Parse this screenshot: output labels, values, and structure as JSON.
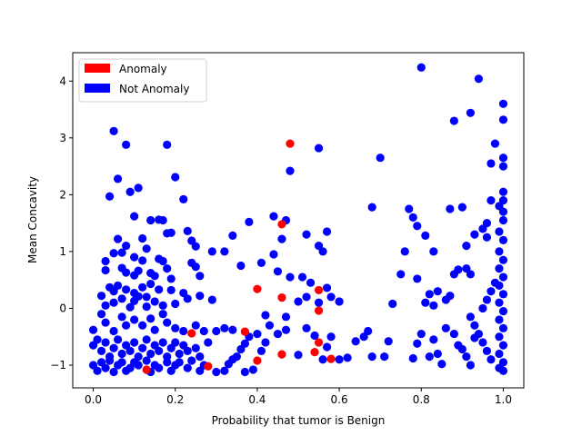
{
  "chart_data": {
    "type": "scatter",
    "title": "",
    "xlabel": "Probability that tumor is Benign",
    "ylabel": "Mean Concavity",
    "xlim": [
      -0.05,
      1.05
    ],
    "ylim": [
      -1.4,
      4.5
    ],
    "xticks": [
      0.0,
      0.2,
      0.4,
      0.6,
      0.8,
      1.0
    ],
    "xtick_labels": [
      "0.0",
      "0.2",
      "0.4",
      "0.6",
      "0.8",
      "1.0"
    ],
    "yticks": [
      -1,
      0,
      1,
      2,
      3,
      4
    ],
    "ytick_labels": [
      "−1",
      "0",
      "1",
      "2",
      "3",
      "4"
    ],
    "grid": false,
    "legend": {
      "placement": "top-left",
      "entries": [
        {
          "label": "Anomaly",
          "color": "#ff0000"
        },
        {
          "label": "Not Anomaly",
          "color": "#0000ff"
        }
      ]
    },
    "series": [
      {
        "name": "Not Anomaly",
        "color": "#0000ff",
        "points": [
          [
            0.05,
            3.12
          ],
          [
            0.08,
            2.88
          ],
          [
            0.18,
            2.88
          ],
          [
            0.2,
            2.31
          ],
          [
            0.06,
            2.28
          ],
          [
            0.11,
            2.12
          ],
          [
            0.09,
            2.05
          ],
          [
            0.04,
            1.97
          ],
          [
            0.22,
            1.92
          ],
          [
            0.1,
            1.62
          ],
          [
            0.14,
            1.55
          ],
          [
            0.16,
            1.56
          ],
          [
            0.17,
            1.55
          ],
          [
            0.23,
            1.36
          ],
          [
            0.18,
            1.32
          ],
          [
            0.19,
            1.33
          ],
          [
            0.24,
            1.19
          ],
          [
            0.12,
            1.23
          ],
          [
            0.06,
            1.22
          ],
          [
            0.08,
            1.1
          ],
          [
            0.13,
            1.05
          ],
          [
            0.25,
            1.09
          ],
          [
            0.29,
            1.0
          ],
          [
            0.32,
            1.0
          ],
          [
            0.03,
            0.83
          ],
          [
            0.05,
            0.97
          ],
          [
            0.07,
            0.98
          ],
          [
            0.1,
            0.9
          ],
          [
            0.12,
            0.84
          ],
          [
            0.16,
            0.87
          ],
          [
            0.17,
            0.83
          ],
          [
            0.18,
            0.7
          ],
          [
            0.24,
            0.8
          ],
          [
            0.25,
            0.73
          ],
          [
            0.26,
            0.57
          ],
          [
            0.03,
            0.67
          ],
          [
            0.07,
            0.71
          ],
          [
            0.08,
            0.63
          ],
          [
            0.1,
            0.58
          ],
          [
            0.11,
            0.66
          ],
          [
            0.14,
            0.62
          ],
          [
            0.15,
            0.57
          ],
          [
            0.19,
            0.52
          ],
          [
            0.04,
            0.37
          ],
          [
            0.06,
            0.4
          ],
          [
            0.02,
            0.22
          ],
          [
            0.05,
            0.3
          ],
          [
            0.08,
            0.33
          ],
          [
            0.1,
            0.27
          ],
          [
            0.12,
            0.37
          ],
          [
            0.13,
            0.2
          ],
          [
            0.14,
            0.43
          ],
          [
            0.16,
            0.33
          ],
          [
            0.19,
            0.32
          ],
          [
            0.22,
            0.27
          ],
          [
            0.03,
            0.05
          ],
          [
            0.05,
            0.1
          ],
          [
            0.07,
            0.17
          ],
          [
            0.09,
            0.02
          ],
          [
            0.1,
            0.13
          ],
          [
            0.11,
            0.21
          ],
          [
            0.13,
            0.03
          ],
          [
            0.15,
            0.12
          ],
          [
            0.17,
            0.05
          ],
          [
            0.2,
            0.08
          ],
          [
            0.23,
            0.17
          ],
          [
            0.26,
            0.22
          ],
          [
            0.29,
            0.15
          ],
          [
            0.0,
            -0.38
          ],
          [
            0.02,
            -0.1
          ],
          [
            0.03,
            -0.25
          ],
          [
            0.05,
            -0.4
          ],
          [
            0.07,
            -0.15
          ],
          [
            0.08,
            -0.3
          ],
          [
            0.1,
            -0.2
          ],
          [
            0.12,
            -0.3
          ],
          [
            0.14,
            -0.18
          ],
          [
            0.15,
            -0.38
          ],
          [
            0.17,
            -0.1
          ],
          [
            0.18,
            -0.25
          ],
          [
            0.2,
            -0.35
          ],
          [
            0.22,
            -0.4
          ],
          [
            0.25,
            -0.3
          ],
          [
            0.27,
            -0.4
          ],
          [
            0.3,
            -0.4
          ],
          [
            0.32,
            -0.35
          ],
          [
            0.34,
            -0.38
          ],
          [
            0.0,
            -0.65
          ],
          [
            0.01,
            -0.55
          ],
          [
            0.02,
            -0.75
          ],
          [
            0.03,
            -0.6
          ],
          [
            0.04,
            -0.85
          ],
          [
            0.05,
            -0.7
          ],
          [
            0.06,
            -0.55
          ],
          [
            0.07,
            -0.8
          ],
          [
            0.08,
            -0.65
          ],
          [
            0.09,
            -0.75
          ],
          [
            0.1,
            -0.6
          ],
          [
            0.11,
            -0.85
          ],
          [
            0.12,
            -0.7
          ],
          [
            0.13,
            -0.55
          ],
          [
            0.14,
            -0.8
          ],
          [
            0.15,
            -0.65
          ],
          [
            0.16,
            -0.75
          ],
          [
            0.17,
            -0.6
          ],
          [
            0.18,
            -0.85
          ],
          [
            0.19,
            -0.7
          ],
          [
            0.2,
            -0.6
          ],
          [
            0.21,
            -0.8
          ],
          [
            0.22,
            -0.65
          ],
          [
            0.23,
            -0.75
          ],
          [
            0.25,
            -0.7
          ],
          [
            0.26,
            -0.85
          ],
          [
            0.28,
            -0.6
          ],
          [
            0.0,
            -1.0
          ],
          [
            0.01,
            -1.1
          ],
          [
            0.02,
            -0.95
          ],
          [
            0.03,
            -1.05
          ],
          [
            0.04,
            -0.92
          ],
          [
            0.05,
            -1.12
          ],
          [
            0.06,
            -1.0
          ],
          [
            0.07,
            -0.95
          ],
          [
            0.08,
            -1.1
          ],
          [
            0.09,
            -1.05
          ],
          [
            0.1,
            -0.95
          ],
          [
            0.11,
            -1.0
          ],
          [
            0.13,
            -0.92
          ],
          [
            0.14,
            -1.12
          ],
          [
            0.15,
            -1.0
          ],
          [
            0.16,
            -1.05
          ],
          [
            0.18,
            -0.95
          ],
          [
            0.19,
            -1.1
          ],
          [
            0.2,
            -1.0
          ],
          [
            0.21,
            -0.95
          ],
          [
            0.23,
            -1.05
          ],
          [
            0.24,
            -0.92
          ],
          [
            0.26,
            -1.1
          ],
          [
            0.27,
            -1.0
          ],
          [
            0.3,
            -1.12
          ],
          [
            0.32,
            -1.1
          ],
          [
            0.33,
            -0.98
          ],
          [
            0.34,
            -0.9
          ],
          [
            0.35,
            -0.85
          ],
          [
            0.36,
            -0.72
          ],
          [
            0.37,
            -0.62
          ],
          [
            0.38,
            -0.5
          ],
          [
            0.37,
            -1.12
          ],
          [
            0.39,
            -1.08
          ],
          [
            0.41,
            -0.75
          ],
          [
            0.42,
            -0.6
          ],
          [
            0.4,
            -0.45
          ],
          [
            0.43,
            -0.3
          ],
          [
            0.45,
            -0.45
          ],
          [
            0.47,
            -0.38
          ],
          [
            0.5,
            -0.82
          ],
          [
            0.52,
            -0.35
          ],
          [
            0.54,
            -0.48
          ],
          [
            0.57,
            -0.68
          ],
          [
            0.56,
            -0.9
          ],
          [
            0.58,
            -0.5
          ],
          [
            0.6,
            -0.9
          ],
          [
            0.62,
            -0.87
          ],
          [
            0.64,
            -0.58
          ],
          [
            0.66,
            -0.5
          ],
          [
            0.67,
            -0.4
          ],
          [
            0.68,
            -0.85
          ],
          [
            0.71,
            -0.85
          ],
          [
            0.72,
            -0.58
          ],
          [
            0.42,
            -0.12
          ],
          [
            0.47,
            -0.15
          ],
          [
            0.5,
            0.12
          ],
          [
            0.52,
            0.2
          ],
          [
            0.55,
            0.1
          ],
          [
            0.58,
            0.2
          ],
          [
            0.6,
            0.12
          ],
          [
            0.57,
            0.36
          ],
          [
            0.45,
            0.65
          ],
          [
            0.48,
            0.55
          ],
          [
            0.51,
            0.55
          ],
          [
            0.53,
            0.45
          ],
          [
            0.36,
            0.75
          ],
          [
            0.41,
            0.8
          ],
          [
            0.44,
            0.95
          ],
          [
            0.46,
            1.22
          ],
          [
            0.34,
            1.28
          ],
          [
            0.38,
            1.52
          ],
          [
            0.44,
            1.62
          ],
          [
            0.47,
            1.55
          ],
          [
            0.52,
            1.3
          ],
          [
            0.55,
            1.1
          ],
          [
            0.56,
            1.0
          ],
          [
            0.57,
            1.35
          ],
          [
            0.48,
            2.42
          ],
          [
            0.55,
            2.82
          ],
          [
            0.68,
            1.78
          ],
          [
            0.7,
            2.65
          ],
          [
            0.73,
            0.08
          ],
          [
            0.75,
            0.6
          ],
          [
            0.76,
            1.0
          ],
          [
            0.77,
            1.75
          ],
          [
            0.78,
            1.6
          ],
          [
            0.79,
            0.52
          ],
          [
            0.79,
            1.45
          ],
          [
            0.8,
            4.24
          ],
          [
            0.81,
            0.1
          ],
          [
            0.82,
            0.25
          ],
          [
            0.81,
            1.28
          ],
          [
            0.83,
            0.05
          ],
          [
            0.83,
            1.0
          ],
          [
            0.84,
            0.3
          ],
          [
            0.86,
            0.15
          ],
          [
            0.87,
            0.22
          ],
          [
            0.87,
            1.75
          ],
          [
            0.88,
            0.6
          ],
          [
            0.89,
            0.68
          ],
          [
            0.88,
            3.3
          ],
          [
            0.9,
            1.78
          ],
          [
            0.91,
            0.7
          ],
          [
            0.91,
            1.1
          ],
          [
            0.92,
            0.6
          ],
          [
            0.92,
            3.44
          ],
          [
            0.93,
            1.3
          ],
          [
            0.94,
            4.04
          ],
          [
            0.95,
            1.4
          ],
          [
            0.96,
            1.5
          ],
          [
            0.97,
            2.55
          ],
          [
            0.98,
            2.9
          ],
          [
            0.99,
            1.8
          ],
          [
            1.0,
            3.6
          ],
          [
            1.0,
            3.32
          ],
          [
            1.0,
            2.65
          ],
          [
            1.0,
            2.5
          ],
          [
            1.0,
            2.05
          ],
          [
            1.0,
            1.9
          ],
          [
            1.0,
            1.7
          ],
          [
            1.0,
            1.55
          ],
          [
            0.99,
            1.35
          ],
          [
            1.0,
            1.2
          ],
          [
            0.99,
            1.0
          ],
          [
            1.0,
            0.85
          ],
          [
            0.99,
            0.7
          ],
          [
            1.0,
            0.55
          ],
          [
            0.99,
            0.4
          ],
          [
            1.0,
            0.25
          ],
          [
            0.99,
            0.1
          ],
          [
            1.0,
            -0.05
          ],
          [
            0.99,
            -0.2
          ],
          [
            1.0,
            -0.35
          ],
          [
            0.99,
            -0.5
          ],
          [
            1.0,
            -0.65
          ],
          [
            0.99,
            -0.8
          ],
          [
            1.0,
            -0.95
          ],
          [
            0.99,
            -1.05
          ],
          [
            1.0,
            -1.1
          ],
          [
            0.97,
            -0.9
          ],
          [
            0.96,
            -0.75
          ],
          [
            0.95,
            -0.6
          ],
          [
            0.94,
            -0.45
          ],
          [
            0.93,
            -0.3
          ],
          [
            0.92,
            -0.15
          ],
          [
            0.9,
            -0.72
          ],
          [
            0.91,
            -0.85
          ],
          [
            0.92,
            -1.0
          ],
          [
            0.93,
            -0.52
          ],
          [
            0.89,
            -0.65
          ],
          [
            0.88,
            -0.45
          ],
          [
            0.86,
            -0.35
          ],
          [
            0.85,
            -0.98
          ],
          [
            0.84,
            -0.8
          ],
          [
            0.83,
            -0.55
          ],
          [
            0.82,
            -0.85
          ],
          [
            0.8,
            -0.45
          ],
          [
            0.79,
            -0.62
          ],
          [
            0.78,
            -0.88
          ],
          [
            0.97,
            0.3
          ],
          [
            0.96,
            0.15
          ],
          [
            0.95,
            0.0
          ],
          [
            0.98,
            0.45
          ],
          [
            0.97,
            1.9
          ],
          [
            0.96,
            1.25
          ]
        ]
      },
      {
        "name": "Anomaly",
        "color": "#ff0000",
        "points": [
          [
            0.48,
            2.9
          ],
          [
            0.46,
            1.48
          ],
          [
            0.4,
            0.34
          ],
          [
            0.46,
            0.19
          ],
          [
            0.55,
            0.32
          ],
          [
            0.55,
            -0.04
          ],
          [
            0.24,
            -0.44
          ],
          [
            0.37,
            -0.41
          ],
          [
            0.55,
            -0.6
          ],
          [
            0.46,
            -0.81
          ],
          [
            0.54,
            -0.77
          ],
          [
            0.58,
            -0.89
          ],
          [
            0.4,
            -0.92
          ],
          [
            0.28,
            -1.02
          ],
          [
            0.13,
            -1.08
          ]
        ]
      }
    ]
  }
}
